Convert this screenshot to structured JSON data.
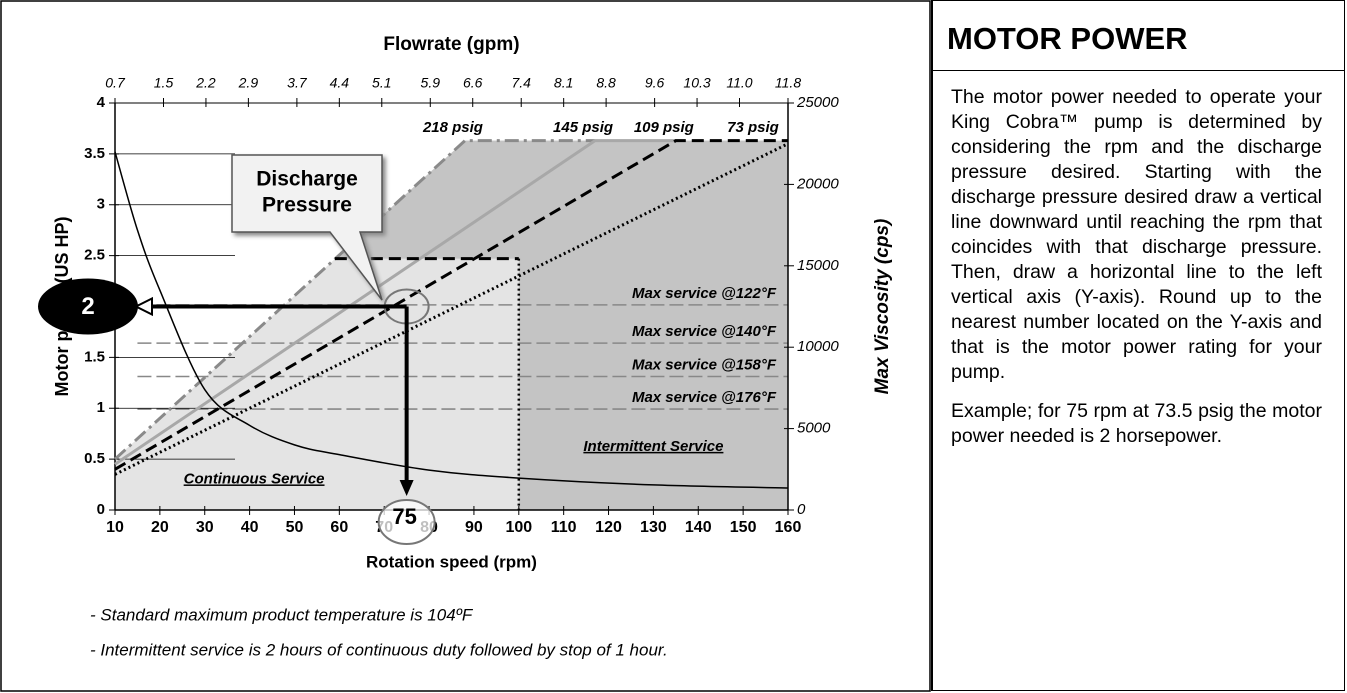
{
  "chart_data": {
    "type": "line",
    "title": "Flowrate (gpm)",
    "x_label": "Rotation speed (rpm)",
    "y_label": "Motor power (US HP)",
    "y2_label": "Max Viscosity (cps)",
    "xlim": [
      10,
      160
    ],
    "xticks": [
      10,
      20,
      30,
      40,
      50,
      60,
      70,
      80,
      90,
      100,
      110,
      120,
      130,
      140,
      150,
      160
    ],
    "x2lim": [
      0.7,
      11.8
    ],
    "x2ticks": [
      0.7,
      1.5,
      2.2,
      2.9,
      3.7,
      4.4,
      5.1,
      5.9,
      6.6,
      7.4,
      8.1,
      8.8,
      9.6,
      10.3,
      {
        "value": 11,
        "label": "11.0"
      },
      11.8
    ],
    "ylim": [
      0,
      4
    ],
    "yticks": [
      0,
      0.5,
      1,
      1.5,
      2,
      2.5,
      3,
      3.5,
      4
    ],
    "y2lim": [
      0,
      25000
    ],
    "y2ticks": [
      0,
      5000,
      10000,
      15000,
      20000,
      25000
    ],
    "series": [
      {
        "name": "218 psig",
        "color": "#8a8a8a",
        "style": "dashdot",
        "x": [
          10,
          88,
          117
        ],
        "values": [
          0.5,
          3.63,
          3.63
        ]
      },
      {
        "name": "145 psig",
        "color": "#a8a8a8",
        "style": "solid",
        "x": [
          10,
          117,
          135
        ],
        "values": [
          0.45,
          3.63,
          3.63
        ]
      },
      {
        "name": "109 psig",
        "color": "#000000",
        "style": "dashed",
        "x": [
          10,
          135,
          160
        ],
        "values": [
          0.4,
          3.63,
          3.63
        ]
      },
      {
        "name": "73 psig",
        "color": "#000000",
        "style": "dotted",
        "x": [
          10,
          160
        ],
        "values": [
          0.35,
          3.6
        ]
      },
      {
        "color": "#000000",
        "style": "thin",
        "axis": "y2",
        "x": [
          10,
          15,
          20,
          30,
          40,
          50,
          60,
          80,
          100,
          130,
          160
        ],
        "values": [
          22000,
          17200,
          13500,
          7400,
          5200,
          4000,
          3400,
          2450,
          1960,
          1540,
          1350
        ]
      }
    ],
    "limits": {
      "x": [
        59,
        100,
        100
      ],
      "values": [
        2.47,
        2.47,
        0
      ]
    },
    "service_lines": [
      {
        "label": "Max service @122°F",
        "value": 12600
      },
      {
        "label": "Max service @140°F",
        "value": 10250
      },
      {
        "label": "Max service @158°F",
        "value": 8200
      },
      {
        "label": "Max service @176°F",
        "value": 6200
      }
    ],
    "regions": {
      "continuous": "Continuous Service",
      "intermittent": "Intermittent Service"
    },
    "callout": [
      "Discharge",
      "Pressure"
    ],
    "example": {
      "rpm": 75,
      "hp": 2
    },
    "notes": [
      "- Standard maximum product temperature is 104ºF",
      "- Intermittent service is 2 hours of continuous duty followed by stop of 1 hour."
    ]
  },
  "panel": {
    "title": "MOTOR POWER",
    "paragraphs": [
      "The motor power needed to operate your King Cobra™ pump is determined by considering the rpm and the discharge pressure desired. Starting with the discharge pressure desired draw a vertical line downward until reaching the rpm that coincides with that discharge pressure. Then, draw a horizontal line to the left vertical axis (Y-axis). Round up to the nearest number located on the Y-axis and that is the motor power rating for your pump.",
      "Example; for 75 rpm at 73.5 psig the motor power needed is 2 horsepower."
    ]
  }
}
